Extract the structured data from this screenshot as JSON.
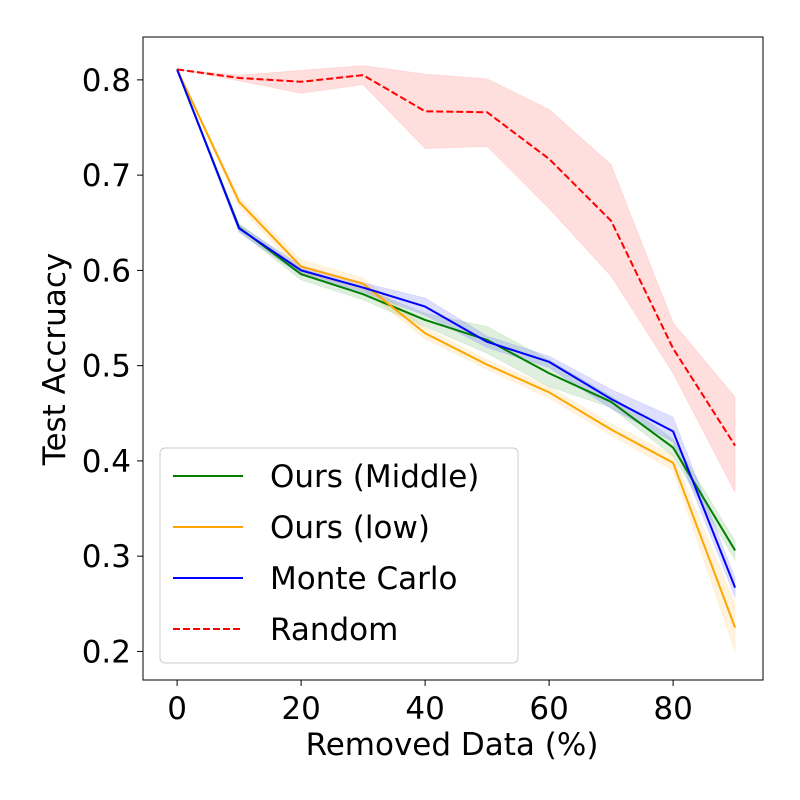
{
  "chart_data": {
    "type": "line",
    "title": "",
    "xlabel": "Removed Data (%)",
    "ylabel": "Test Accruacy",
    "xlim": [
      -5.5,
      94.5
    ],
    "ylim": [
      0.17,
      0.845
    ],
    "xticks": [
      0,
      20,
      40,
      60,
      80
    ],
    "xtick_labels": [
      "0",
      "20",
      "40",
      "60",
      "80"
    ],
    "yticks": [
      0.2,
      0.3,
      0.4,
      0.5,
      0.6,
      0.7,
      0.8
    ],
    "ytick_labels": [
      "0.2",
      "0.3",
      "0.4",
      "0.5",
      "0.6",
      "0.7",
      "0.8"
    ],
    "grid": false,
    "legend_position": "lower-left",
    "x": [
      0,
      10,
      20,
      30,
      40,
      50,
      60,
      70,
      80,
      90
    ],
    "series": [
      {
        "name": "Ours (Middle)",
        "color": "#008000",
        "dash": "solid",
        "values": [
          0.811,
          0.645,
          0.596,
          0.575,
          0.548,
          0.527,
          0.492,
          0.462,
          0.414,
          0.306
        ],
        "lower": [
          0.811,
          0.641,
          0.59,
          0.569,
          0.541,
          0.513,
          0.478,
          0.456,
          0.405,
          0.296
        ],
        "upper": [
          0.811,
          0.649,
          0.602,
          0.581,
          0.555,
          0.541,
          0.506,
          0.468,
          0.423,
          0.316
        ]
      },
      {
        "name": "Ours (low)",
        "color": "#ffa500",
        "dash": "solid",
        "values": [
          0.811,
          0.672,
          0.604,
          0.586,
          0.534,
          0.501,
          0.472,
          0.433,
          0.398,
          0.225
        ],
        "lower": [
          0.811,
          0.667,
          0.597,
          0.58,
          0.528,
          0.496,
          0.466,
          0.427,
          0.39,
          0.2
        ],
        "upper": [
          0.811,
          0.677,
          0.611,
          0.592,
          0.54,
          0.506,
          0.478,
          0.439,
          0.406,
          0.25
        ]
      },
      {
        "name": "Monte Carlo",
        "color": "#0000ff",
        "dash": "solid",
        "values": [
          0.811,
          0.644,
          0.6,
          0.582,
          0.562,
          0.525,
          0.504,
          0.465,
          0.431,
          0.267
        ],
        "lower": [
          0.811,
          0.64,
          0.595,
          0.577,
          0.553,
          0.519,
          0.498,
          0.455,
          0.42,
          0.257
        ],
        "upper": [
          0.811,
          0.648,
          0.605,
          0.587,
          0.571,
          0.531,
          0.51,
          0.475,
          0.446,
          0.277
        ]
      },
      {
        "name": "Random",
        "color": "#ff0000",
        "dash": "dashed",
        "values": [
          0.811,
          0.802,
          0.798,
          0.805,
          0.767,
          0.766,
          0.717,
          0.652,
          0.518,
          0.416
        ],
        "lower": [
          0.811,
          0.799,
          0.786,
          0.795,
          0.728,
          0.73,
          0.665,
          0.594,
          0.492,
          0.367
        ],
        "upper": [
          0.811,
          0.805,
          0.81,
          0.815,
          0.806,
          0.801,
          0.769,
          0.711,
          0.545,
          0.467
        ]
      }
    ]
  }
}
